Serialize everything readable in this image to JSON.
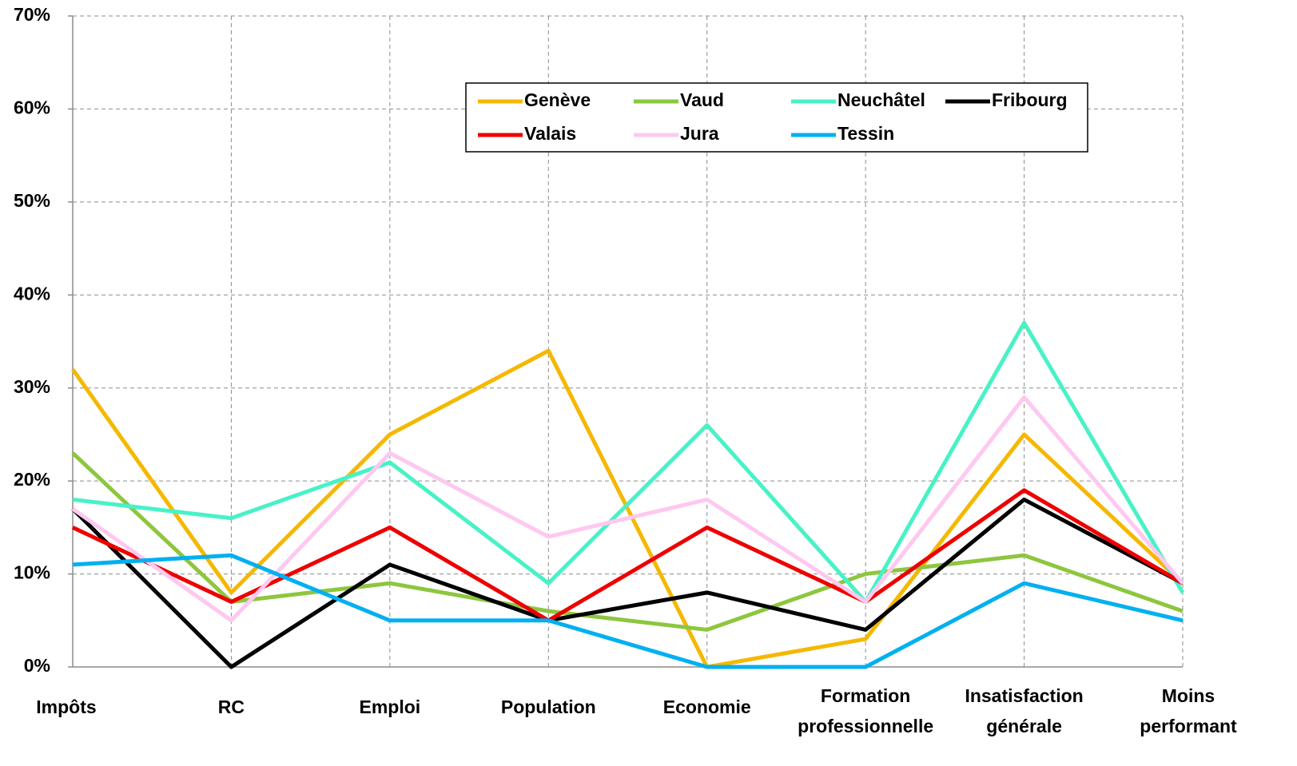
{
  "chart_data": {
    "type": "line",
    "categories": [
      "Impôts",
      "RC",
      "Emploi",
      "Population",
      "Economie",
      "Formation professionnelle",
      "Insatisfaction générale",
      "Moins performant"
    ],
    "series": [
      {
        "name": "Genève",
        "color": "#f5b800",
        "values": [
          32,
          8,
          25,
          34,
          0,
          3,
          25,
          9
        ]
      },
      {
        "name": "Vaud",
        "color": "#8dc63f",
        "values": [
          23,
          7,
          9,
          6,
          4,
          10,
          12,
          6
        ]
      },
      {
        "name": "Neuchâtel",
        "color": "#47f2c6",
        "values": [
          18,
          16,
          22,
          9,
          26,
          7,
          37,
          8
        ]
      },
      {
        "name": "Fribourg",
        "color": "#000000",
        "values": [
          17,
          0,
          11,
          5,
          8,
          4,
          18,
          9
        ]
      },
      {
        "name": "Valais",
        "color": "#ee0000",
        "values": [
          15,
          7,
          15,
          5,
          15,
          7,
          19,
          9
        ]
      },
      {
        "name": "Jura",
        "color": "#ffc8f0",
        "values": [
          17,
          5,
          23,
          14,
          18,
          7,
          29,
          9
        ]
      },
      {
        "name": "Tessin",
        "color": "#00b0f0",
        "values": [
          11,
          12,
          5,
          5,
          0,
          0,
          9,
          5
        ]
      }
    ],
    "ylim": [
      0,
      70
    ],
    "yticks": [
      {
        "value": 0,
        "label": "0%"
      },
      {
        "value": 10,
        "label": "10%"
      },
      {
        "value": 20,
        "label": "20%"
      },
      {
        "value": 30,
        "label": "30%"
      },
      {
        "value": 40,
        "label": "40%"
      },
      {
        "value": 50,
        "label": "50%"
      },
      {
        "value": 60,
        "label": "60%"
      },
      {
        "value": 70,
        "label": "70%"
      }
    ],
    "grid": true,
    "legend": "top"
  }
}
